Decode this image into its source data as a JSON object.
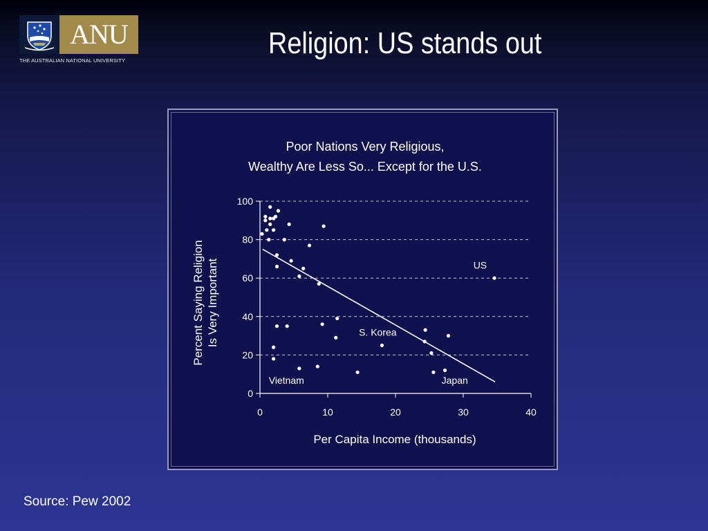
{
  "header": {
    "logo": {
      "wordmark": "ANU",
      "subtitle": "THE AUSTRALIAN NATIONAL UNIVERSITY"
    },
    "title": "Religion: US stands out"
  },
  "footer": {
    "source": "Source: Pew 2002"
  },
  "chart_data": {
    "type": "scatter",
    "title_lines": [
      "Poor Nations Very Religious,",
      "Wealthy Are Less So... Except for the U.S."
    ],
    "xlabel": "Per Capita Income (thousands)",
    "ylabel_lines": [
      "Percent Saying Religion",
      "Is Very Important"
    ],
    "xlim": [
      0,
      40
    ],
    "ylim": [
      0,
      100
    ],
    "xticks": [
      0,
      10,
      20,
      30,
      40
    ],
    "yticks": [
      0,
      20,
      40,
      60,
      80,
      100
    ],
    "grid": "horizontal dashed",
    "colors": {
      "background": "#10104e",
      "marks": "#ffffff",
      "grid": "#c8c8d8"
    },
    "points": [
      [
        0.3,
        83
      ],
      [
        0.8,
        92
      ],
      [
        0.8,
        90
      ],
      [
        1.0,
        85
      ],
      [
        1.3,
        80
      ],
      [
        1.5,
        97
      ],
      [
        1.5,
        88
      ],
      [
        1.5,
        91
      ],
      [
        2.0,
        91
      ],
      [
        2.0,
        85
      ],
      [
        2.3,
        92
      ],
      [
        2.7,
        95
      ],
      [
        2.5,
        72
      ],
      [
        2.5,
        66
      ],
      [
        3.6,
        80
      ],
      [
        4.3,
        88
      ],
      [
        4.6,
        69
      ],
      [
        5.8,
        61
      ],
      [
        6.4,
        65
      ],
      [
        7.3,
        77
      ],
      [
        8.7,
        57
      ],
      [
        9.4,
        87
      ],
      [
        2.0,
        24
      ],
      [
        2.0,
        18
      ],
      [
        2.5,
        35
      ],
      [
        4.0,
        35
      ],
      [
        5.8,
        13
      ],
      [
        8.5,
        14
      ],
      [
        9.2,
        36
      ],
      [
        11.2,
        29
      ],
      [
        11.4,
        39
      ],
      [
        14.4,
        11
      ],
      [
        18.0,
        25
      ],
      [
        24.4,
        33
      ],
      [
        24.3,
        27
      ],
      [
        25.3,
        21
      ],
      [
        25.6,
        11
      ],
      [
        27.3,
        12
      ],
      [
        27.8,
        30
      ],
      [
        34.6,
        60
      ]
    ],
    "trendline": {
      "x": [
        0.4,
        34.7
      ],
      "y": [
        75,
        6
      ]
    },
    "annotations": [
      {
        "text": "US",
        "x": 31.5,
        "y": 65
      },
      {
        "text": "S. Korea",
        "x": 14.6,
        "y": 30
      },
      {
        "text": "Vietnam",
        "x": 1.3,
        "y": 5
      },
      {
        "text": "Japan",
        "x": 26.8,
        "y": 5
      }
    ]
  }
}
